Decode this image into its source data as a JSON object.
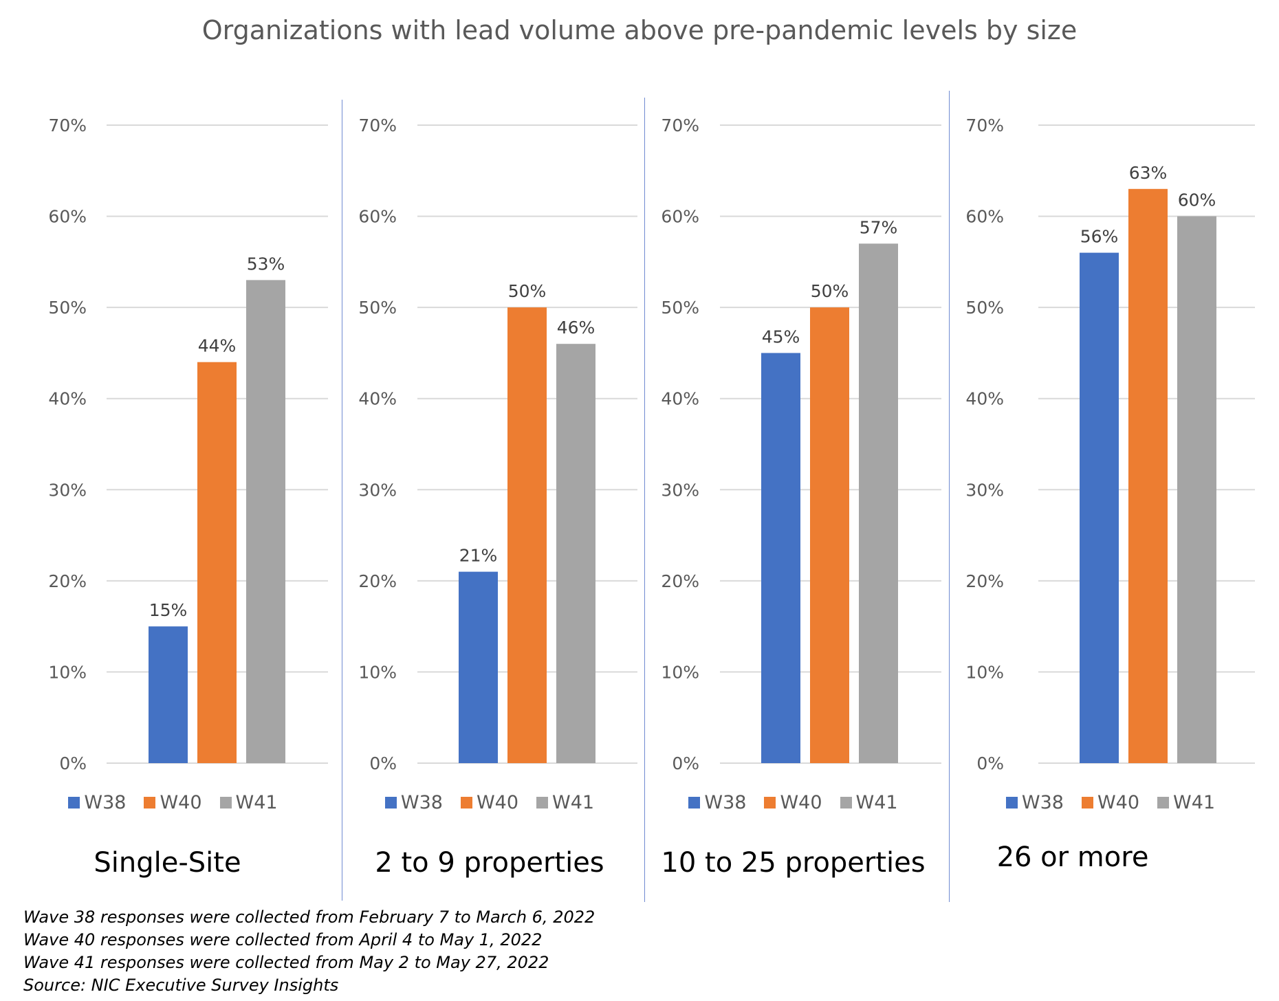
{
  "title": "Organizations with lead volume above pre-pandemic levels by size",
  "chart_data": [
    {
      "type": "bar",
      "title": "Single-Site",
      "categories": [
        "W38",
        "W40",
        "W41"
      ],
      "values": [
        15,
        44,
        53
      ],
      "data_labels": [
        "15%",
        "44%",
        "53%"
      ],
      "ylim": [
        0,
        70
      ],
      "yticks": [
        "0%",
        "10%",
        "20%",
        "30%",
        "40%",
        "50%",
        "60%",
        "70%"
      ],
      "grid": true,
      "legend": [
        "W38",
        "W40",
        "W41"
      ]
    },
    {
      "type": "bar",
      "title": "2 to 9 properties",
      "categories": [
        "W38",
        "W40",
        "W41"
      ],
      "values": [
        21,
        50,
        46
      ],
      "data_labels": [
        "21%",
        "50%",
        "46%"
      ],
      "ylim": [
        0,
        70
      ],
      "yticks": [
        "0%",
        "10%",
        "20%",
        "30%",
        "40%",
        "50%",
        "60%",
        "70%"
      ],
      "grid": true,
      "legend": [
        "W38",
        "W40",
        "W41"
      ]
    },
    {
      "type": "bar",
      "title": "10 to 25 properties",
      "categories": [
        "W38",
        "W40",
        "W41"
      ],
      "values": [
        45,
        50,
        57
      ],
      "data_labels": [
        "45%",
        "50%",
        "57%"
      ],
      "ylim": [
        0,
        70
      ],
      "yticks": [
        "0%",
        "10%",
        "20%",
        "30%",
        "40%",
        "50%",
        "60%",
        "70%"
      ],
      "grid": true,
      "legend": [
        "W38",
        "W40",
        "W41"
      ]
    },
    {
      "type": "bar",
      "title": "26 or more",
      "categories": [
        "W38",
        "W40",
        "W41"
      ],
      "values": [
        56,
        63,
        60
      ],
      "data_labels": [
        "56%",
        "63%",
        "60%"
      ],
      "ylim": [
        0,
        70
      ],
      "yticks": [
        "0%",
        "10%",
        "20%",
        "30%",
        "40%",
        "50%",
        "60%",
        "70%"
      ],
      "grid": true,
      "legend": [
        "W38",
        "W40",
        "W41"
      ]
    }
  ],
  "colors": {
    "W38": "#4472c4",
    "W40": "#ed7d31",
    "W41": "#a5a5a5",
    "grid": "#d9d9d9",
    "divider": "#6f8ad1"
  },
  "notes": [
    "Wave 38 responses were collected from February 7 to March 6, 2022",
    "Wave 40 responses were collected from April 4 to May 1, 2022",
    "Wave 41 responses were collected from May 2 to May 27, 2022",
    "Source: NIC Executive Survey Insights"
  ]
}
